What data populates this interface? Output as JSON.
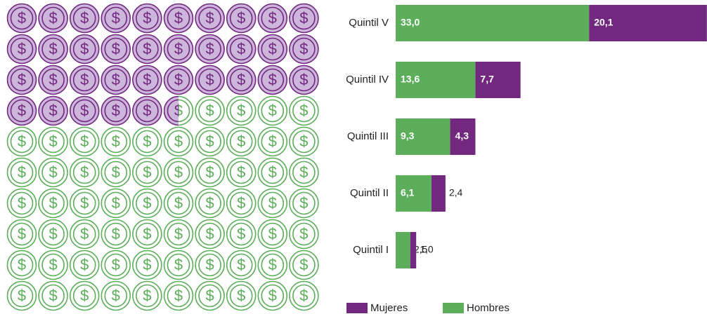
{
  "chart_data": {
    "type": "stacked_bar_horizontal",
    "categories": [
      "Quintil V",
      "Quintil IV",
      "Quintil III",
      "Quintil II",
      "Quintil I"
    ],
    "series": [
      {
        "name": "Hombres",
        "color": "#5cae5a",
        "values": [
          33.0,
          13.6,
          9.3,
          6.1,
          2.5
        ],
        "value_labels": [
          "33,0",
          "13,6",
          "9,3",
          "6,1",
          "2,5"
        ]
      },
      {
        "name": "Mujeres",
        "color": "#73287f",
        "values": [
          20.1,
          7.7,
          4.3,
          2.4,
          1.0
        ],
        "value_labels": [
          "20,1",
          "7,7",
          "4,3",
          "2,4",
          "1,0"
        ]
      }
    ],
    "legend_order": [
      "Mujeres",
      "Hombres"
    ]
  }
}
